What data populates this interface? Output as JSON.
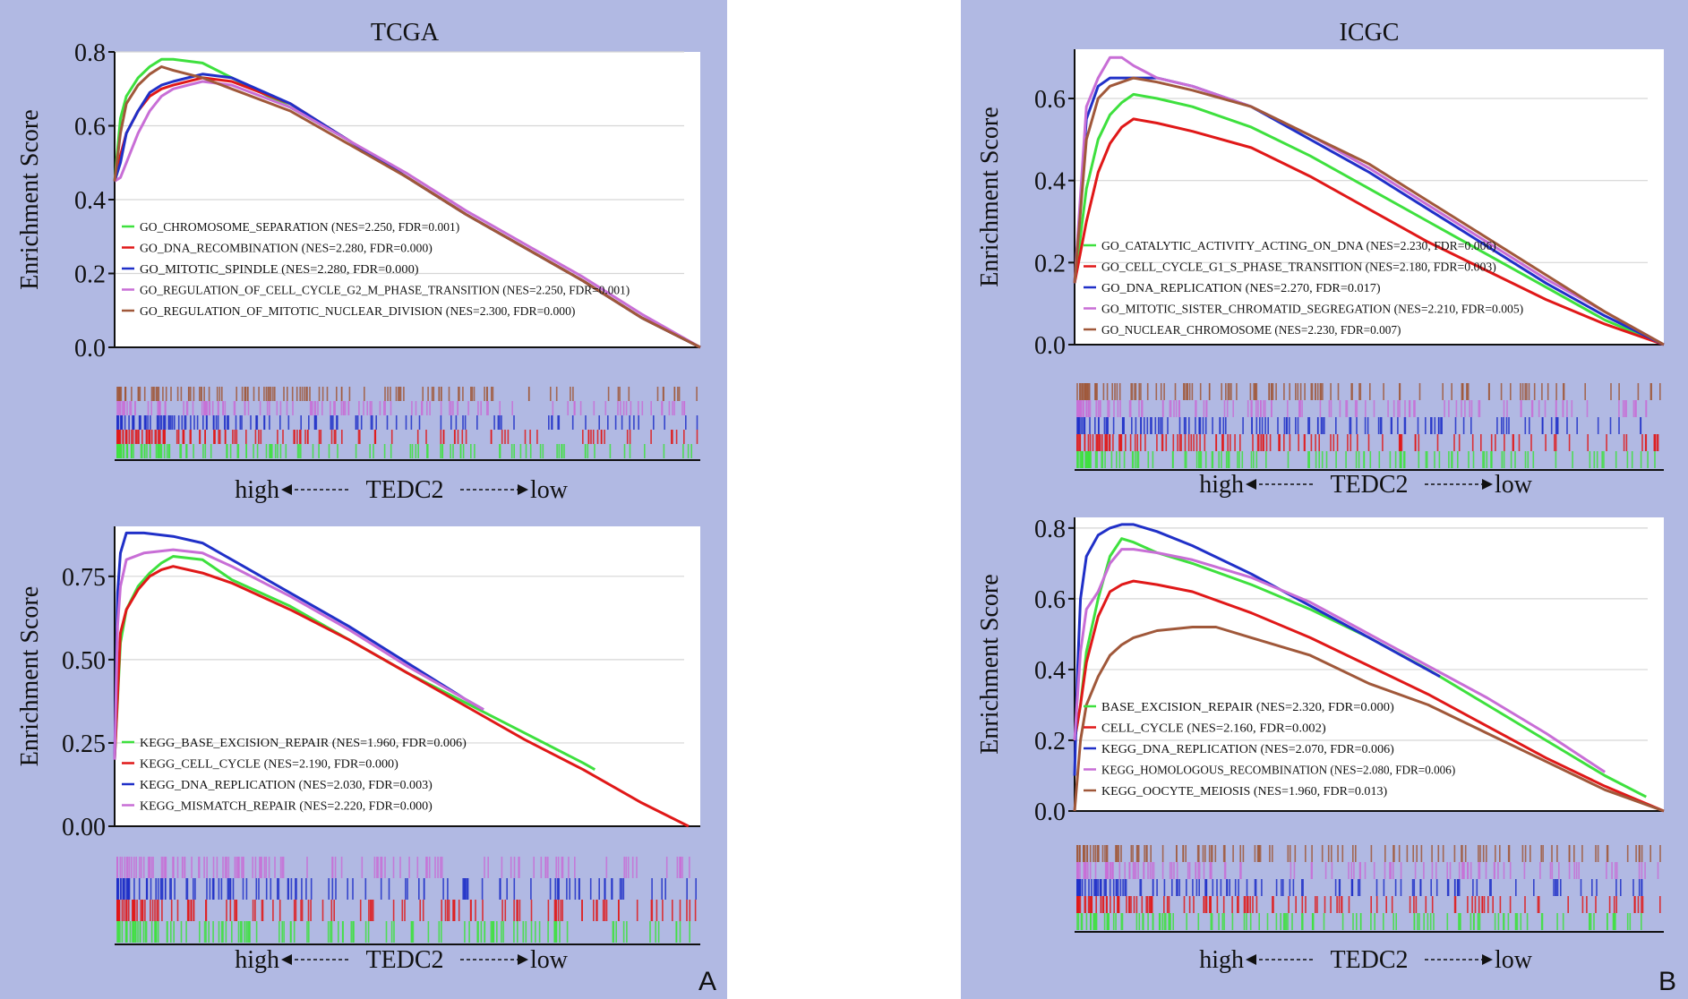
{
  "panels": [
    {
      "title": "TCGA",
      "letter": "A"
    },
    {
      "title": "ICGC",
      "letter": "B"
    }
  ],
  "direction": {
    "high": "high",
    "gene": "TEDC2",
    "low": "low"
  },
  "chart_data": [
    {
      "id": "tcga-go",
      "type": "line",
      "title": "TCGA",
      "ylabel": "Enrichment Score",
      "xlabel": "high ← TEDC2 → low",
      "ylim": [
        0,
        0.8
      ],
      "yticks": [
        0.0,
        0.2,
        0.4,
        0.6,
        0.8
      ],
      "ytick_labels": [
        "0.0",
        "0.2",
        "0.4",
        "0.6",
        "0.8"
      ],
      "xlim": [
        0,
        1
      ],
      "grid": true,
      "legend_position": "bottom-left",
      "series": [
        {
          "name": "GO_CHROMOSOME_SEPARATION",
          "stats": "(NES=2.250, FDR=0.001)",
          "color": "#3ee03e",
          "x": [
            0,
            0.01,
            0.02,
            0.04,
            0.06,
            0.08,
            0.1,
            0.15,
            0.2,
            0.3,
            0.4,
            0.5,
            0.6,
            0.7,
            0.8,
            0.9,
            1.0
          ],
          "y": [
            0.45,
            0.62,
            0.68,
            0.73,
            0.76,
            0.78,
            0.78,
            0.77,
            0.73,
            0.65,
            0.56,
            0.46,
            0.36,
            0.27,
            0.18,
            0.08,
            0.0
          ]
        },
        {
          "name": "GO_DNA_RECOMBINATION",
          "stats": "(NES=2.280, FDR=0.000)",
          "color": "#e01818",
          "x": [
            0,
            0.01,
            0.02,
            0.04,
            0.06,
            0.08,
            0.1,
            0.15,
            0.2,
            0.3,
            0.4,
            0.5,
            0.6,
            0.7,
            0.8,
            0.9,
            1.0
          ],
          "y": [
            0.45,
            0.52,
            0.58,
            0.64,
            0.68,
            0.7,
            0.71,
            0.73,
            0.72,
            0.66,
            0.56,
            0.46,
            0.36,
            0.27,
            0.18,
            0.08,
            0.0
          ]
        },
        {
          "name": "GO_MITOTIC_SPINDLE",
          "stats": "(NES=2.280, FDR=0.000)",
          "color": "#2030c8",
          "x": [
            0,
            0.01,
            0.02,
            0.04,
            0.06,
            0.08,
            0.1,
            0.15,
            0.2,
            0.3,
            0.4,
            0.5,
            0.6,
            0.7,
            0.8,
            0.9,
            1.0
          ],
          "y": [
            0.45,
            0.5,
            0.58,
            0.64,
            0.69,
            0.71,
            0.72,
            0.74,
            0.73,
            0.66,
            0.56,
            0.46,
            0.36,
            0.27,
            0.18,
            0.08,
            0.0
          ]
        },
        {
          "name": "GO_REGULATION_OF_CELL_CYCLE_G2_M_PHASE_TRANSITION",
          "stats": "(NES=2.250, FDR=0.001)",
          "color": "#c86ed6",
          "x": [
            0,
            0.01,
            0.02,
            0.04,
            0.06,
            0.08,
            0.1,
            0.15,
            0.2,
            0.3,
            0.4,
            0.5,
            0.6,
            0.7,
            0.8,
            0.9,
            1.0
          ],
          "y": [
            0.45,
            0.46,
            0.5,
            0.58,
            0.64,
            0.68,
            0.7,
            0.72,
            0.71,
            0.65,
            0.56,
            0.47,
            0.37,
            0.28,
            0.19,
            0.09,
            0.0
          ]
        },
        {
          "name": "GO_REGULATION_OF_MITOTIC_NUCLEAR_DIVISION",
          "stats": "(NES=2.300, FDR=0.000)",
          "color": "#a0583a",
          "x": [
            0,
            0.01,
            0.02,
            0.04,
            0.06,
            0.08,
            0.1,
            0.15,
            0.2,
            0.3,
            0.4,
            0.5,
            0.6,
            0.7,
            0.8,
            0.9,
            1.0
          ],
          "y": [
            0.45,
            0.58,
            0.66,
            0.71,
            0.74,
            0.76,
            0.75,
            0.73,
            0.7,
            0.64,
            0.55,
            0.46,
            0.36,
            0.27,
            0.18,
            0.08,
            0.0
          ]
        }
      ]
    },
    {
      "id": "tcga-kegg",
      "type": "line",
      "title": "",
      "ylabel": "Enrichment Score",
      "xlabel": "high ← TEDC2 → low",
      "ylim": [
        0,
        0.9
      ],
      "yticks": [
        0.0,
        0.25,
        0.5,
        0.75
      ],
      "ytick_labels": [
        "0.00",
        "0.25",
        "0.50",
        "0.75"
      ],
      "xlim": [
        0,
        1
      ],
      "grid": true,
      "legend_position": "bottom-left",
      "series": [
        {
          "name": "KEGG_BASE_EXCISION_REPAIR",
          "stats": "(NES=1.960, FDR=0.006)",
          "color": "#3ee03e",
          "x": [
            0,
            0.01,
            0.02,
            0.04,
            0.06,
            0.08,
            0.1,
            0.15,
            0.2,
            0.3,
            0.4,
            0.5,
            0.6,
            0.7,
            0.8,
            0.82
          ],
          "y": [
            0.2,
            0.55,
            0.65,
            0.72,
            0.76,
            0.79,
            0.81,
            0.8,
            0.74,
            0.66,
            0.56,
            0.46,
            0.37,
            0.28,
            0.19,
            0.17
          ]
        },
        {
          "name": "KEGG_CELL_CYCLE",
          "stats": "(NES=2.190, FDR=0.000)",
          "color": "#e01818",
          "x": [
            0,
            0.01,
            0.02,
            0.04,
            0.06,
            0.08,
            0.1,
            0.15,
            0.2,
            0.3,
            0.4,
            0.5,
            0.6,
            0.7,
            0.8,
            0.9,
            0.98
          ],
          "y": [
            0.2,
            0.58,
            0.65,
            0.71,
            0.75,
            0.77,
            0.78,
            0.76,
            0.73,
            0.65,
            0.56,
            0.46,
            0.36,
            0.26,
            0.17,
            0.07,
            0.0
          ]
        },
        {
          "name": "KEGG_DNA_REPLICATION",
          "stats": "(NES=2.030, FDR=0.003)",
          "color": "#2030c8",
          "x": [
            0,
            0.005,
            0.01,
            0.02,
            0.05,
            0.1,
            0.15,
            0.2,
            0.3,
            0.4,
            0.5,
            0.6,
            0.63
          ],
          "y": [
            0.2,
            0.7,
            0.82,
            0.88,
            0.88,
            0.87,
            0.85,
            0.8,
            0.7,
            0.6,
            0.49,
            0.38,
            0.35
          ]
        },
        {
          "name": "KEGG_MISMATCH_REPAIR",
          "stats": "(NES=2.220, FDR=0.000)",
          "color": "#c86ed6",
          "x": [
            0,
            0.005,
            0.01,
            0.02,
            0.05,
            0.1,
            0.15,
            0.2,
            0.3,
            0.4,
            0.5,
            0.6,
            0.63
          ],
          "y": [
            0.2,
            0.6,
            0.72,
            0.8,
            0.82,
            0.83,
            0.82,
            0.78,
            0.69,
            0.59,
            0.48,
            0.38,
            0.35
          ]
        }
      ]
    },
    {
      "id": "icgc-go",
      "type": "line",
      "title": "ICGC",
      "ylabel": "Enrichment Score",
      "xlabel": "high ← TEDC2 → low",
      "ylim": [
        0,
        0.72
      ],
      "yticks": [
        0.0,
        0.2,
        0.4,
        0.6
      ],
      "ytick_labels": [
        "0.0",
        "0.2",
        "0.4",
        "0.6"
      ],
      "xlim": [
        0,
        1
      ],
      "grid": true,
      "legend_position": "bottom-left",
      "series": [
        {
          "name": "GO_CATALYTIC_ACTIVITY_ACTING_ON_DNA",
          "stats": "(NES=2.230, FDR=0.006)",
          "color": "#3ee03e",
          "x": [
            0,
            0.02,
            0.04,
            0.06,
            0.08,
            0.1,
            0.14,
            0.2,
            0.3,
            0.4,
            0.5,
            0.6,
            0.7,
            0.8,
            0.9,
            1.0
          ],
          "y": [
            0.15,
            0.38,
            0.5,
            0.56,
            0.59,
            0.61,
            0.6,
            0.58,
            0.53,
            0.46,
            0.38,
            0.3,
            0.22,
            0.14,
            0.06,
            0.0
          ]
        },
        {
          "name": "GO_CELL_CYCLE_G1_S_PHASE_TRANSITION",
          "stats": "(NES=2.180, FDR=0.003)",
          "color": "#e01818",
          "x": [
            0,
            0.02,
            0.04,
            0.06,
            0.08,
            0.1,
            0.14,
            0.2,
            0.3,
            0.4,
            0.5,
            0.6,
            0.7,
            0.8,
            0.9,
            1.0
          ],
          "y": [
            0.15,
            0.3,
            0.42,
            0.49,
            0.53,
            0.55,
            0.54,
            0.52,
            0.48,
            0.41,
            0.33,
            0.25,
            0.18,
            0.11,
            0.05,
            0.0
          ]
        },
        {
          "name": "GO_DNA_REPLICATION",
          "stats": "(NES=2.270, FDR=0.017)",
          "color": "#2030c8",
          "x": [
            0,
            0.02,
            0.04,
            0.06,
            0.08,
            0.1,
            0.14,
            0.2,
            0.3,
            0.4,
            0.5,
            0.6,
            0.7,
            0.8,
            0.9,
            1.0
          ],
          "y": [
            0.15,
            0.55,
            0.63,
            0.65,
            0.65,
            0.65,
            0.65,
            0.63,
            0.58,
            0.5,
            0.42,
            0.33,
            0.24,
            0.15,
            0.07,
            0.0
          ]
        },
        {
          "name": "GO_MITOTIC_SISTER_CHROMATID_SEGREGATION",
          "stats": "(NES=2.210, FDR=0.005)",
          "color": "#c86ed6",
          "x": [
            0,
            0.02,
            0.04,
            0.06,
            0.08,
            0.1,
            0.14,
            0.2,
            0.3,
            0.4,
            0.5,
            0.6,
            0.7,
            0.8,
            0.9,
            1.0
          ],
          "y": [
            0.15,
            0.58,
            0.65,
            0.7,
            0.7,
            0.68,
            0.65,
            0.63,
            0.58,
            0.51,
            0.43,
            0.34,
            0.25,
            0.16,
            0.08,
            0.0
          ]
        },
        {
          "name": "GO_NUCLEAR_CHROMOSOME",
          "stats": "(NES=2.230, FDR=0.007)",
          "color": "#a0583a",
          "x": [
            0,
            0.02,
            0.04,
            0.06,
            0.08,
            0.1,
            0.14,
            0.2,
            0.3,
            0.4,
            0.5,
            0.6,
            0.7,
            0.8,
            0.9,
            1.0
          ],
          "y": [
            0.15,
            0.5,
            0.6,
            0.63,
            0.64,
            0.65,
            0.64,
            0.62,
            0.58,
            0.51,
            0.44,
            0.35,
            0.26,
            0.17,
            0.08,
            0.0
          ]
        }
      ]
    },
    {
      "id": "icgc-kegg",
      "type": "line",
      "title": "",
      "ylabel": "Enrichment Score",
      "xlabel": "high ← TEDC2 → low",
      "ylim": [
        0,
        0.83
      ],
      "yticks": [
        0.0,
        0.2,
        0.4,
        0.6,
        0.8
      ],
      "ytick_labels": [
        "0.0",
        "0.2",
        "0.4",
        "0.6",
        "0.8"
      ],
      "xlim": [
        0,
        1
      ],
      "grid": true,
      "legend_position": "bottom-left",
      "series": [
        {
          "name": "BASE_EXCISION_REPAIR",
          "stats": "(NES=2.320, FDR=0.000)",
          "color": "#3ee03e",
          "x": [
            0,
            0.01,
            0.02,
            0.04,
            0.06,
            0.08,
            0.1,
            0.14,
            0.2,
            0.3,
            0.4,
            0.5,
            0.6,
            0.7,
            0.8,
            0.9,
            0.97
          ],
          "y": [
            0.2,
            0.3,
            0.45,
            0.6,
            0.72,
            0.77,
            0.76,
            0.73,
            0.7,
            0.64,
            0.57,
            0.49,
            0.4,
            0.3,
            0.2,
            0.1,
            0.04
          ]
        },
        {
          "name": "CELL_CYCLE",
          "stats": "(NES=2.160, FDR=0.002)",
          "color": "#e01818",
          "x": [
            0,
            0.01,
            0.02,
            0.04,
            0.06,
            0.08,
            0.1,
            0.14,
            0.2,
            0.3,
            0.4,
            0.5,
            0.6,
            0.7,
            0.8,
            0.9,
            1.0
          ],
          "y": [
            0.2,
            0.3,
            0.42,
            0.55,
            0.62,
            0.64,
            0.65,
            0.64,
            0.62,
            0.56,
            0.49,
            0.41,
            0.33,
            0.24,
            0.15,
            0.07,
            0.0
          ]
        },
        {
          "name": "KEGG_DNA_REPLICATION",
          "stats": "(NES=2.070, FDR=0.006)",
          "color": "#2030c8",
          "x": [
            0,
            0.005,
            0.01,
            0.02,
            0.04,
            0.06,
            0.08,
            0.1,
            0.14,
            0.2,
            0.3,
            0.4,
            0.5,
            0.62
          ],
          "y": [
            0.1,
            0.4,
            0.6,
            0.72,
            0.78,
            0.8,
            0.81,
            0.81,
            0.79,
            0.75,
            0.67,
            0.58,
            0.49,
            0.38
          ]
        },
        {
          "name": "KEGG_HOMOLOGOUS_RECOMBINATION",
          "stats": "(NES=2.080, FDR=0.006)",
          "color": "#c86ed6",
          "x": [
            0,
            0.01,
            0.02,
            0.04,
            0.06,
            0.08,
            0.1,
            0.14,
            0.2,
            0.3,
            0.4,
            0.5,
            0.6,
            0.7,
            0.8,
            0.9
          ],
          "y": [
            0.2,
            0.45,
            0.57,
            0.62,
            0.7,
            0.74,
            0.74,
            0.73,
            0.71,
            0.66,
            0.59,
            0.5,
            0.41,
            0.32,
            0.22,
            0.11
          ]
        },
        {
          "name": "KEGG_OOCYTE_MEIOSIS",
          "stats": "(NES=1.960, FDR=0.013)",
          "color": "#a0583a",
          "x": [
            0,
            0.01,
            0.02,
            0.04,
            0.06,
            0.08,
            0.1,
            0.14,
            0.2,
            0.24,
            0.3,
            0.4,
            0.5,
            0.6,
            0.7,
            0.8,
            0.9,
            1.0
          ],
          "y": [
            0.0,
            0.2,
            0.3,
            0.38,
            0.44,
            0.47,
            0.49,
            0.51,
            0.52,
            0.52,
            0.49,
            0.44,
            0.36,
            0.3,
            0.22,
            0.14,
            0.06,
            0.0
          ]
        }
      ]
    }
  ]
}
